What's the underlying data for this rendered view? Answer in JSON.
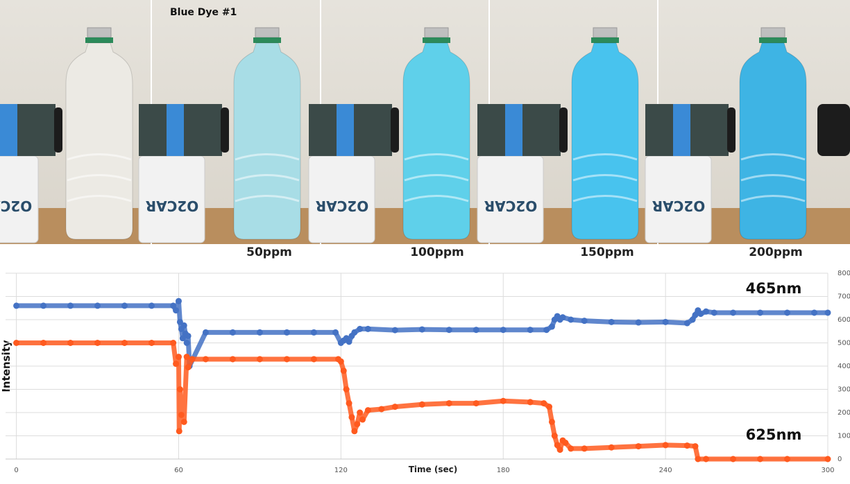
{
  "photo": {
    "caption": "Blue Dye #1",
    "labels": [
      "50ppm",
      "100ppm",
      "150ppm",
      "200ppm"
    ]
  },
  "chart_data": {
    "type": "scatter",
    "y_label": "Intensity",
    "x_label": "Time (sec)",
    "xlim": [
      -4,
      300
    ],
    "xticks": [
      0,
      60,
      120,
      180,
      240,
      300
    ],
    "ylim": [
      0,
      800
    ],
    "yticks": [
      0,
      100,
      200,
      300,
      400,
      500,
      600,
      700,
      800
    ],
    "grid": true,
    "series": [
      {
        "name": "465nm",
        "color": "#4472c4",
        "x": [
          0,
          10,
          20,
          30,
          40,
          50,
          58,
          59,
          60,
          60.5,
          61,
          61.5,
          62,
          62.5,
          63,
          63.5,
          64,
          70,
          80,
          90,
          100,
          110,
          118,
          120,
          121,
          122,
          123,
          124,
          125,
          127,
          130,
          140,
          150,
          160,
          170,
          180,
          190,
          196,
          198,
          199,
          200,
          201,
          202,
          205,
          210,
          220,
          230,
          240,
          248,
          250,
          251,
          252,
          253,
          255,
          258,
          265,
          275,
          285,
          295,
          300
        ],
        "values": [
          660,
          660,
          660,
          660,
          660,
          660,
          660,
          640,
          680,
          590,
          560,
          520,
          575,
          540,
          500,
          530,
          400,
          545,
          545,
          545,
          545,
          545,
          545,
          500,
          510,
          520,
          505,
          530,
          545,
          560,
          560,
          555,
          558,
          556,
          556,
          556,
          556,
          556,
          570,
          600,
          615,
          600,
          610,
          600,
          595,
          590,
          588,
          590,
          585,
          600,
          620,
          640,
          625,
          635,
          630,
          630,
          630,
          630,
          630,
          630
        ]
      },
      {
        "name": "625nm",
        "color": "#ff5a1f",
        "x": [
          0,
          10,
          20,
          30,
          40,
          50,
          58,
          59,
          60,
          60.2,
          60.5,
          61,
          62,
          63,
          63.5,
          65,
          70,
          80,
          90,
          100,
          110,
          119,
          120,
          121,
          122,
          123,
          124,
          125,
          126,
          127,
          128,
          130,
          135,
          140,
          150,
          160,
          170,
          180,
          190,
          195,
          197,
          198,
          199,
          200,
          201,
          202,
          203,
          205,
          210,
          220,
          230,
          240,
          248,
          251,
          252,
          255,
          265,
          275,
          285,
          300
        ],
        "values": [
          500,
          500,
          500,
          500,
          500,
          500,
          500,
          410,
          440,
          120,
          300,
          190,
          160,
          440,
          395,
          430,
          430,
          430,
          430,
          430,
          430,
          430,
          420,
          380,
          300,
          240,
          180,
          120,
          150,
          200,
          170,
          210,
          215,
          225,
          235,
          240,
          240,
          250,
          245,
          240,
          225,
          160,
          100,
          60,
          40,
          80,
          70,
          45,
          45,
          50,
          55,
          60,
          58,
          55,
          0,
          0,
          0,
          0,
          0,
          0
        ]
      }
    ]
  }
}
